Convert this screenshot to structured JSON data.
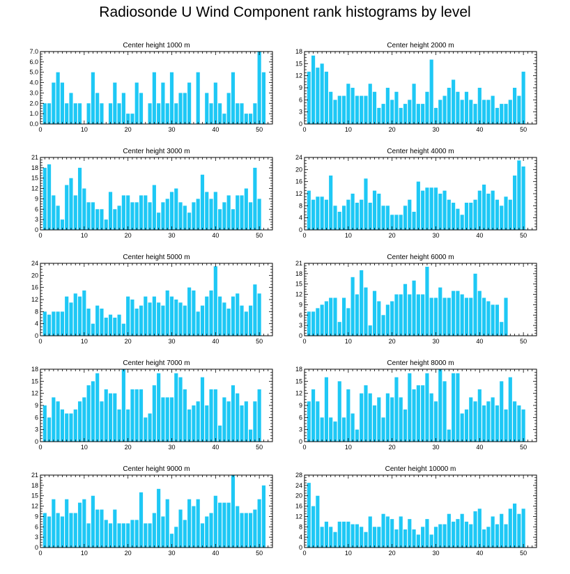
{
  "title": "Radiosonde U Wind Component rank histograms by level",
  "colors": {
    "bar": "#1ec8f5",
    "axis": "#000000",
    "background": "#ffffff"
  },
  "chart_data": [
    {
      "type": "bar",
      "title": "Center height 1000 m",
      "x_ticks": [
        0,
        10,
        20,
        30,
        40,
        50
      ],
      "xlim": [
        0,
        53
      ],
      "ylim": [
        0,
        7.0
      ],
      "y_ticks": [
        "0.0",
        "1.0",
        "2.0",
        "3.0",
        "4.0",
        "5.0",
        "6.0",
        "7.0"
      ],
      "x": [
        1,
        2,
        3,
        4,
        5,
        6,
        7,
        8,
        9,
        10,
        11,
        12,
        13,
        14,
        15,
        16,
        17,
        18,
        19,
        20,
        21,
        22,
        23,
        24,
        25,
        26,
        27,
        28,
        29,
        30,
        31,
        32,
        33,
        34,
        35,
        36,
        37,
        38,
        39,
        40,
        41,
        42,
        43,
        44,
        45,
        46,
        47,
        48,
        49,
        50,
        51
      ],
      "values": [
        2,
        2,
        4,
        5,
        4,
        2,
        3,
        2,
        2,
        0,
        2,
        5,
        3,
        2,
        0,
        2,
        4,
        2,
        3,
        1,
        1,
        4,
        3,
        0,
        2,
        5,
        2,
        4,
        2,
        5,
        2,
        3,
        3,
        4,
        0,
        5,
        0,
        3,
        2,
        4,
        2,
        1,
        3,
        5,
        2,
        2,
        1,
        1,
        2,
        7,
        5
      ]
    },
    {
      "type": "bar",
      "title": "Center height 2000 m",
      "x_ticks": [
        0,
        10,
        20,
        30,
        40,
        50
      ],
      "xlim": [
        0,
        53
      ],
      "ylim": [
        0,
        18
      ],
      "y_ticks": [
        "0",
        "3",
        "6",
        "9",
        "12",
        "15",
        "18"
      ],
      "x": [
        1,
        2,
        3,
        4,
        5,
        6,
        7,
        8,
        9,
        10,
        11,
        12,
        13,
        14,
        15,
        16,
        17,
        18,
        19,
        20,
        21,
        22,
        23,
        24,
        25,
        26,
        27,
        28,
        29,
        30,
        31,
        32,
        33,
        34,
        35,
        36,
        37,
        38,
        39,
        40,
        41,
        42,
        43,
        44,
        45,
        46,
        47,
        48,
        49,
        50,
        51
      ],
      "values": [
        13,
        17,
        14,
        15,
        13,
        8,
        6,
        7,
        7,
        10,
        9,
        7,
        7,
        7,
        10,
        8,
        4,
        5,
        9,
        6,
        8,
        4,
        5,
        6,
        10,
        5,
        5,
        8,
        16,
        4,
        6,
        7,
        9,
        11,
        8,
        6,
        8,
        6,
        5,
        9,
        6,
        6,
        7,
        4,
        5,
        5,
        6,
        9,
        7,
        13,
        0
      ]
    },
    {
      "type": "bar",
      "title": "Center height 3000 m",
      "x_ticks": [
        0,
        10,
        20,
        30,
        40,
        50
      ],
      "xlim": [
        0,
        53
      ],
      "ylim": [
        0,
        21
      ],
      "y_ticks": [
        "0",
        "3",
        "6",
        "9",
        "12",
        "15",
        "18",
        "21"
      ],
      "x": [
        1,
        2,
        3,
        4,
        5,
        6,
        7,
        8,
        9,
        10,
        11,
        12,
        13,
        14,
        15,
        16,
        17,
        18,
        19,
        20,
        21,
        22,
        23,
        24,
        25,
        26,
        27,
        28,
        29,
        30,
        31,
        32,
        33,
        34,
        35,
        36,
        37,
        38,
        39,
        40,
        41,
        42,
        43,
        44,
        45,
        46,
        47,
        48,
        49,
        50,
        51
      ],
      "values": [
        18,
        19,
        10,
        7,
        3,
        13,
        15,
        10,
        18,
        12,
        8,
        8,
        6,
        6,
        3,
        11,
        6,
        7,
        10,
        10,
        8,
        8,
        10,
        10,
        8,
        13,
        5,
        8,
        9,
        11,
        12,
        8,
        7,
        5,
        8,
        9,
        16,
        11,
        9,
        11,
        6,
        8,
        10,
        6,
        10,
        10,
        12,
        8,
        18,
        9,
        0
      ]
    },
    {
      "type": "bar",
      "title": "Center height 4000 m",
      "x_ticks": [
        0,
        10,
        20,
        30,
        40,
        50
      ],
      "xlim": [
        0,
        53
      ],
      "ylim": [
        0,
        24
      ],
      "y_ticks": [
        "0",
        "4",
        "8",
        "12",
        "16",
        "20",
        "24"
      ],
      "x": [
        1,
        2,
        3,
        4,
        5,
        6,
        7,
        8,
        9,
        10,
        11,
        12,
        13,
        14,
        15,
        16,
        17,
        18,
        19,
        20,
        21,
        22,
        23,
        24,
        25,
        26,
        27,
        28,
        29,
        30,
        31,
        32,
        33,
        34,
        35,
        36,
        37,
        38,
        39,
        40,
        41,
        42,
        43,
        44,
        45,
        46,
        47,
        48,
        49,
        50,
        51
      ],
      "values": [
        13,
        10,
        11,
        11,
        10,
        18,
        8,
        6,
        8,
        10,
        12,
        9,
        10,
        17,
        9,
        13,
        12,
        8,
        8,
        5,
        5,
        5,
        8,
        10,
        6,
        16,
        13,
        14,
        14,
        14,
        12,
        13,
        10,
        9,
        7,
        5,
        9,
        9,
        10,
        13,
        15,
        12,
        13,
        10,
        8,
        11,
        10,
        18,
        23,
        21,
        0
      ]
    },
    {
      "type": "bar",
      "title": "Center height 5000 m",
      "x_ticks": [
        0,
        10,
        20,
        30,
        40,
        50
      ],
      "xlim": [
        0,
        53
      ],
      "ylim": [
        0,
        24
      ],
      "y_ticks": [
        "0",
        "4",
        "8",
        "12",
        "16",
        "20",
        "24"
      ],
      "x": [
        1,
        2,
        3,
        4,
        5,
        6,
        7,
        8,
        9,
        10,
        11,
        12,
        13,
        14,
        15,
        16,
        17,
        18,
        19,
        20,
        21,
        22,
        23,
        24,
        25,
        26,
        27,
        28,
        29,
        30,
        31,
        32,
        33,
        34,
        35,
        36,
        37,
        38,
        39,
        40,
        41,
        42,
        43,
        44,
        45,
        46,
        47,
        48,
        49,
        50,
        51
      ],
      "values": [
        8,
        7,
        8,
        8,
        8,
        13,
        11,
        14,
        13,
        15,
        9,
        4,
        10,
        9,
        6,
        7,
        6,
        7,
        4,
        13,
        12,
        9,
        10,
        13,
        11,
        13,
        11,
        10,
        15,
        13,
        12,
        11,
        10,
        16,
        15,
        8,
        10,
        13,
        15,
        23,
        13,
        11,
        9,
        13,
        14,
        10,
        8,
        10,
        17,
        14,
        0
      ]
    },
    {
      "type": "bar",
      "title": "Center height 6000 m",
      "x_ticks": [
        0,
        10,
        20,
        30,
        40,
        50
      ],
      "xlim": [
        0,
        53
      ],
      "ylim": [
        0,
        21
      ],
      "y_ticks": [
        "0",
        "3",
        "6",
        "9",
        "12",
        "15",
        "18",
        "21"
      ],
      "x": [
        1,
        2,
        3,
        4,
        5,
        6,
        7,
        8,
        9,
        10,
        11,
        12,
        13,
        14,
        15,
        16,
        17,
        18,
        19,
        20,
        21,
        22,
        23,
        24,
        25,
        26,
        27,
        28,
        29,
        30,
        31,
        32,
        33,
        34,
        35,
        36,
        37,
        38,
        39,
        40,
        41,
        42,
        43,
        44,
        45,
        46,
        47,
        48,
        49,
        50,
        51
      ],
      "values": [
        7,
        7,
        8,
        9,
        10,
        11,
        11,
        4,
        11,
        8,
        17,
        12,
        19,
        14,
        3,
        13,
        10,
        6,
        9,
        10,
        12,
        12,
        15,
        12,
        16,
        12,
        12,
        20,
        11,
        11,
        14,
        11,
        11,
        13,
        13,
        12,
        11,
        11,
        18,
        13,
        11,
        10,
        9,
        9,
        4,
        11,
        0,
        0,
        0,
        0,
        0
      ]
    },
    {
      "type": "bar",
      "title": "Center height 7000 m",
      "x_ticks": [
        0,
        10,
        20,
        30,
        40,
        50
      ],
      "xlim": [
        0,
        53
      ],
      "ylim": [
        0,
        18
      ],
      "y_ticks": [
        "0",
        "3",
        "6",
        "9",
        "12",
        "15",
        "18"
      ],
      "x": [
        1,
        2,
        3,
        4,
        5,
        6,
        7,
        8,
        9,
        10,
        11,
        12,
        13,
        14,
        15,
        16,
        17,
        18,
        19,
        20,
        21,
        22,
        23,
        24,
        25,
        26,
        27,
        28,
        29,
        30,
        31,
        32,
        33,
        34,
        35,
        36,
        37,
        38,
        39,
        40,
        41,
        42,
        43,
        44,
        45,
        46,
        47,
        48,
        49,
        50,
        51
      ],
      "values": [
        9,
        6,
        11,
        10,
        8,
        7,
        7,
        8,
        10,
        11,
        14,
        15,
        17,
        10,
        13,
        12,
        12,
        8,
        18,
        8,
        13,
        13,
        13,
        6,
        7,
        14,
        17,
        11,
        11,
        11,
        17,
        16,
        13,
        8,
        9,
        10,
        16,
        9,
        13,
        13,
        4,
        11,
        10,
        14,
        12,
        9,
        10,
        3,
        10,
        13,
        0
      ]
    },
    {
      "type": "bar",
      "title": "Center height 8000 m",
      "x_ticks": [
        0,
        10,
        20,
        30,
        40,
        50
      ],
      "xlim": [
        0,
        53
      ],
      "ylim": [
        0,
        18
      ],
      "y_ticks": [
        "0",
        "3",
        "6",
        "9",
        "12",
        "15",
        "18"
      ],
      "x": [
        1,
        2,
        3,
        4,
        5,
        6,
        7,
        8,
        9,
        10,
        11,
        12,
        13,
        14,
        15,
        16,
        17,
        18,
        19,
        20,
        21,
        22,
        23,
        24,
        25,
        26,
        27,
        28,
        29,
        30,
        31,
        32,
        33,
        34,
        35,
        36,
        37,
        38,
        39,
        40,
        41,
        42,
        43,
        44,
        45,
        46,
        47,
        48,
        49,
        50,
        51
      ],
      "values": [
        10,
        13,
        10,
        6,
        16,
        6,
        5,
        15,
        6,
        13,
        7,
        3,
        12,
        14,
        12,
        9,
        11,
        6,
        12,
        11,
        16,
        11,
        8,
        17,
        13,
        14,
        14,
        17,
        12,
        10,
        18,
        15,
        3,
        17,
        17,
        7,
        8,
        11,
        10,
        13,
        9,
        10,
        11,
        9,
        15,
        8,
        16,
        10,
        9,
        8,
        0
      ]
    },
    {
      "type": "bar",
      "title": "Center height 9000 m",
      "x_ticks": [
        0,
        10,
        20,
        30,
        40,
        50
      ],
      "xlim": [
        0,
        53
      ],
      "ylim": [
        0,
        21
      ],
      "y_ticks": [
        "0",
        "3",
        "6",
        "9",
        "12",
        "15",
        "18",
        "21"
      ],
      "x": [
        1,
        2,
        3,
        4,
        5,
        6,
        7,
        8,
        9,
        10,
        11,
        12,
        13,
        14,
        15,
        16,
        17,
        18,
        19,
        20,
        21,
        22,
        23,
        24,
        25,
        26,
        27,
        28,
        29,
        30,
        31,
        32,
        33,
        34,
        35,
        36,
        37,
        38,
        39,
        40,
        41,
        42,
        43,
        44,
        45,
        46,
        47,
        48,
        49,
        50,
        51
      ],
      "values": [
        10,
        9,
        14,
        10,
        9,
        14,
        10,
        10,
        13,
        14,
        7,
        15,
        11,
        11,
        8,
        7,
        11,
        7,
        7,
        7,
        8,
        8,
        16,
        7,
        7,
        10,
        17,
        9,
        14,
        4,
        6,
        11,
        8,
        14,
        12,
        14,
        7,
        9,
        10,
        15,
        13,
        13,
        13,
        21,
        12,
        10,
        10,
        10,
        11,
        14,
        18
      ]
    },
    {
      "type": "bar",
      "title": "Center height 10000 m",
      "x_ticks": [
        0,
        10,
        20,
        30,
        40,
        50
      ],
      "xlim": [
        0,
        53
      ],
      "ylim": [
        0,
        28
      ],
      "y_ticks": [
        "0",
        "4",
        "8",
        "12",
        "16",
        "20",
        "24",
        "28"
      ],
      "x": [
        1,
        2,
        3,
        4,
        5,
        6,
        7,
        8,
        9,
        10,
        11,
        12,
        13,
        14,
        15,
        16,
        17,
        18,
        19,
        20,
        21,
        22,
        23,
        24,
        25,
        26,
        27,
        28,
        29,
        30,
        31,
        32,
        33,
        34,
        35,
        36,
        37,
        38,
        39,
        40,
        41,
        42,
        43,
        44,
        45,
        46,
        47,
        48,
        49,
        50,
        51
      ],
      "values": [
        25,
        16,
        20,
        8,
        10,
        8,
        6,
        10,
        10,
        10,
        9,
        9,
        8,
        6,
        12,
        8,
        8,
        13,
        12,
        11,
        7,
        12,
        7,
        11,
        7,
        5,
        8,
        11,
        5,
        8,
        9,
        9,
        13,
        10,
        11,
        13,
        10,
        9,
        14,
        15,
        7,
        8,
        12,
        9,
        13,
        9,
        15,
        17,
        13,
        15,
        0
      ]
    }
  ]
}
